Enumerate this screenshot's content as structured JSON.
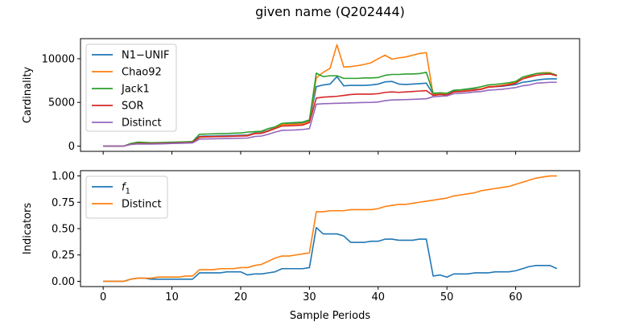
{
  "figure": {
    "title": "given name (Q202444)"
  },
  "chart_data": [
    {
      "type": "line",
      "title": "",
      "xlabel": "",
      "ylabel": "Cardinality",
      "xlim": [
        -3.3,
        69.3
      ],
      "ylim": [
        -600,
        12300
      ],
      "xticks": [
        0,
        10,
        20,
        30,
        40,
        50,
        60
      ],
      "yticks": [
        0,
        5000,
        10000
      ],
      "show_xticklabels": false,
      "grid": false,
      "legend_position": "upper-left",
      "x": [
        0,
        1,
        2,
        3,
        4,
        5,
        6,
        7,
        8,
        9,
        10,
        11,
        12,
        13,
        14,
        15,
        16,
        17,
        18,
        19,
        20,
        21,
        22,
        23,
        24,
        25,
        26,
        27,
        28,
        29,
        30,
        31,
        32,
        33,
        34,
        35,
        36,
        37,
        38,
        39,
        40,
        41,
        42,
        43,
        44,
        45,
        46,
        47,
        48,
        49,
        50,
        51,
        52,
        53,
        54,
        55,
        56,
        57,
        58,
        59,
        60,
        61,
        62,
        63,
        64,
        65,
        66
      ],
      "series": [
        {
          "name": "N1−UNIF",
          "color": "#1f77b4",
          "values": [
            0,
            0,
            0,
            0,
            250,
            350,
            300,
            300,
            320,
            350,
            380,
            400,
            420,
            450,
            1100,
            1150,
            1150,
            1180,
            1200,
            1220,
            1250,
            1280,
            1500,
            1550,
            1800,
            2100,
            2500,
            2550,
            2600,
            2650,
            2850,
            6800,
            7000,
            7100,
            7950,
            6900,
            6950,
            6950,
            6950,
            7000,
            7100,
            7350,
            7400,
            7100,
            7050,
            7100,
            7150,
            7200,
            5950,
            6000,
            5950,
            6300,
            6350,
            6400,
            6500,
            6550,
            6750,
            6800,
            6850,
            6950,
            7050,
            7300,
            7400,
            7550,
            7650,
            7700,
            7700
          ]
        },
        {
          "name": "Chao92",
          "color": "#ff7f0e",
          "values": [
            0,
            0,
            0,
            0,
            250,
            380,
            330,
            320,
            340,
            360,
            390,
            410,
            430,
            460,
            1000,
            1050,
            1070,
            1100,
            1120,
            1150,
            1180,
            1220,
            1450,
            1500,
            1750,
            2050,
            2450,
            2480,
            2500,
            2550,
            2800,
            7800,
            8450,
            8900,
            11600,
            9050,
            9100,
            9200,
            9350,
            9550,
            10000,
            10400,
            9950,
            10100,
            10200,
            10400,
            10600,
            10700,
            5850,
            6000,
            5900,
            6200,
            6300,
            6350,
            6450,
            6550,
            6800,
            6850,
            6950,
            7100,
            7300,
            7700,
            8000,
            8300,
            8400,
            8400,
            8100
          ]
        },
        {
          "name": "Jack1",
          "color": "#2ca02c",
          "values": [
            0,
            0,
            0,
            0,
            300,
            450,
            420,
            380,
            400,
            420,
            440,
            470,
            490,
            520,
            1350,
            1380,
            1400,
            1420,
            1450,
            1480,
            1500,
            1600,
            1650,
            1700,
            2000,
            2200,
            2600,
            2650,
            2700,
            2750,
            3000,
            8350,
            7950,
            8050,
            8050,
            7750,
            7750,
            7750,
            7800,
            7800,
            7850,
            8100,
            8200,
            8200,
            8250,
            8250,
            8300,
            8450,
            6050,
            6100,
            6050,
            6400,
            6450,
            6550,
            6650,
            6800,
            7000,
            7050,
            7150,
            7250,
            7400,
            7900,
            8100,
            8300,
            8350,
            8350,
            8100
          ]
        },
        {
          "name": "SOR",
          "color": "#d62728",
          "values": [
            0,
            0,
            0,
            0,
            200,
            300,
            280,
            280,
            300,
            320,
            350,
            370,
            390,
            420,
            1050,
            1080,
            1090,
            1100,
            1110,
            1130,
            1150,
            1170,
            1420,
            1450,
            1700,
            2000,
            2300,
            2320,
            2350,
            2400,
            2700,
            5500,
            5600,
            5650,
            5700,
            5800,
            5900,
            5950,
            5950,
            5950,
            6000,
            6150,
            6200,
            6150,
            6200,
            6250,
            6300,
            6350,
            5800,
            5900,
            5850,
            6200,
            6250,
            6300,
            6400,
            6500,
            6750,
            6800,
            6900,
            7000,
            7200,
            7700,
            7900,
            8100,
            8200,
            8250,
            8050
          ]
        },
        {
          "name": "Distinct",
          "color": "#9467bd",
          "values": [
            0,
            0,
            0,
            0,
            180,
            250,
            230,
            230,
            250,
            270,
            300,
            320,
            340,
            360,
            800,
            820,
            830,
            850,
            870,
            890,
            900,
            920,
            1100,
            1150,
            1350,
            1600,
            1800,
            1820,
            1850,
            1900,
            2000,
            4800,
            4850,
            4880,
            4900,
            4920,
            4950,
            4970,
            4990,
            5000,
            5050,
            5200,
            5280,
            5300,
            5320,
            5350,
            5380,
            5420,
            5650,
            5700,
            5750,
            6000,
            6050,
            6100,
            6200,
            6250,
            6400,
            6450,
            6500,
            6600,
            6700,
            6900,
            7000,
            7200,
            7250,
            7300,
            7300
          ]
        }
      ]
    },
    {
      "type": "line",
      "title": "",
      "xlabel": "Sample Periods",
      "ylabel": "Indicators",
      "xlim": [
        -3.3,
        69.3
      ],
      "ylim": [
        -0.05,
        1.05
      ],
      "xticks": [
        0,
        10,
        20,
        30,
        40,
        50,
        60
      ],
      "yticks": [
        0.0,
        0.25,
        0.5,
        0.75,
        1.0
      ],
      "ytick_labels": [
        "0.00",
        "0.25",
        "0.50",
        "0.75",
        "1.00"
      ],
      "show_xticklabels": true,
      "grid": false,
      "legend_position": "upper-left",
      "x": [
        0,
        1,
        2,
        3,
        4,
        5,
        6,
        7,
        8,
        9,
        10,
        11,
        12,
        13,
        14,
        15,
        16,
        17,
        18,
        19,
        20,
        21,
        22,
        23,
        24,
        25,
        26,
        27,
        28,
        29,
        30,
        31,
        32,
        33,
        34,
        35,
        36,
        37,
        38,
        39,
        40,
        41,
        42,
        43,
        44,
        45,
        46,
        47,
        48,
        49,
        50,
        51,
        52,
        53,
        54,
        55,
        56,
        57,
        58,
        59,
        60,
        61,
        62,
        63,
        64,
        65,
        66
      ],
      "series": [
        {
          "name": "f1",
          "name_main": "f",
          "name_sub": "1",
          "color": "#1f77b4",
          "values": [
            0.0,
            0.0,
            0.0,
            0.0,
            0.02,
            0.03,
            0.03,
            0.02,
            0.02,
            0.02,
            0.02,
            0.02,
            0.02,
            0.02,
            0.08,
            0.08,
            0.08,
            0.08,
            0.09,
            0.09,
            0.09,
            0.06,
            0.07,
            0.07,
            0.08,
            0.09,
            0.12,
            0.12,
            0.12,
            0.12,
            0.13,
            0.51,
            0.45,
            0.45,
            0.45,
            0.43,
            0.37,
            0.37,
            0.37,
            0.38,
            0.38,
            0.4,
            0.4,
            0.39,
            0.39,
            0.39,
            0.4,
            0.4,
            0.05,
            0.06,
            0.04,
            0.07,
            0.07,
            0.07,
            0.08,
            0.08,
            0.08,
            0.09,
            0.09,
            0.09,
            0.1,
            0.12,
            0.14,
            0.15,
            0.15,
            0.15,
            0.12
          ]
        },
        {
          "name": "Distinct",
          "color": "#ff7f0e",
          "values": [
            0.0,
            0.0,
            0.0,
            0.0,
            0.02,
            0.03,
            0.03,
            0.03,
            0.04,
            0.04,
            0.04,
            0.04,
            0.05,
            0.05,
            0.11,
            0.11,
            0.11,
            0.12,
            0.12,
            0.12,
            0.13,
            0.13,
            0.15,
            0.16,
            0.19,
            0.22,
            0.24,
            0.24,
            0.25,
            0.26,
            0.27,
            0.66,
            0.66,
            0.67,
            0.67,
            0.67,
            0.68,
            0.68,
            0.68,
            0.68,
            0.69,
            0.71,
            0.72,
            0.73,
            0.73,
            0.74,
            0.75,
            0.76,
            0.77,
            0.78,
            0.79,
            0.81,
            0.82,
            0.83,
            0.84,
            0.86,
            0.87,
            0.88,
            0.89,
            0.9,
            0.92,
            0.94,
            0.96,
            0.98,
            0.99,
            1.0,
            1.0
          ]
        }
      ]
    }
  ]
}
